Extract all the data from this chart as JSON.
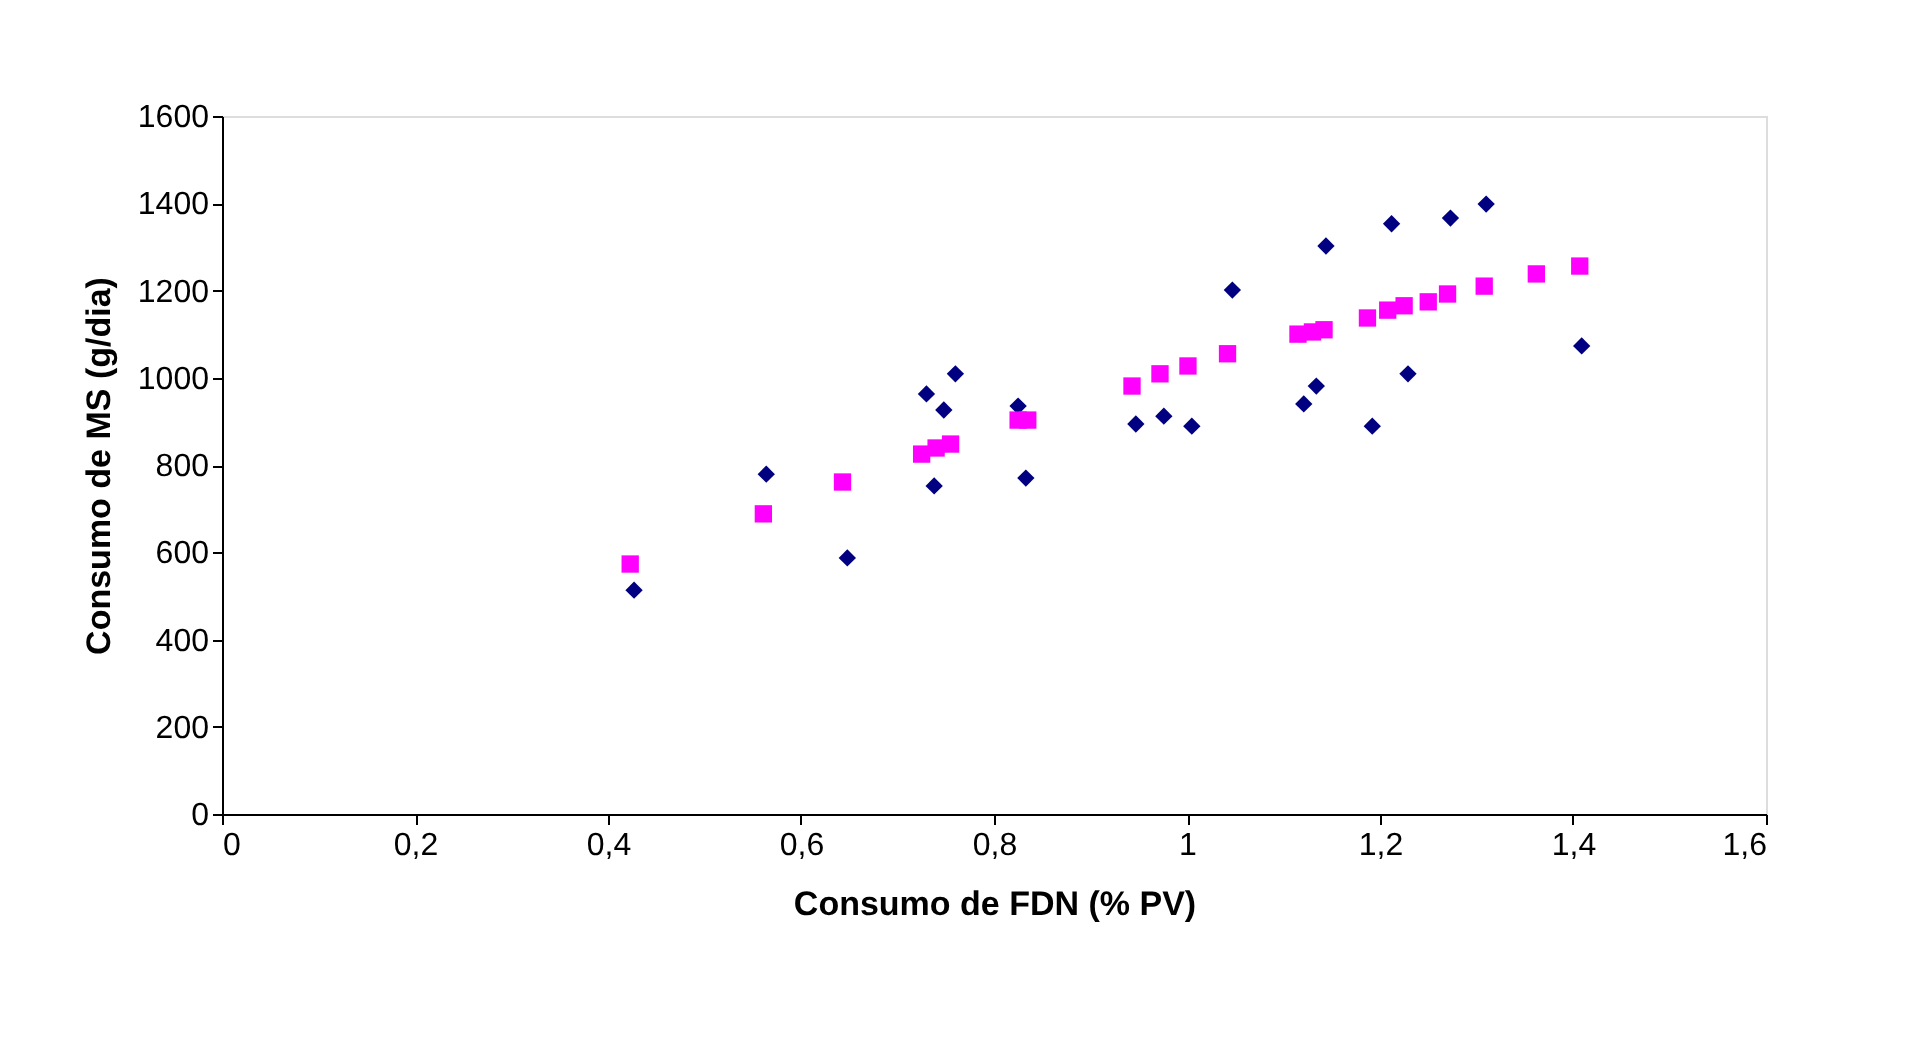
{
  "chart_data": {
    "type": "scatter",
    "xlabel": "Consumo de FDN (% PV)",
    "ylabel": "Consumo de MS (g/dia)",
    "xlim": [
      0,
      1.6
    ],
    "xticks": [
      0,
      {
        "value": 0.2,
        "label": "0,2"
      },
      {
        "value": 0.4,
        "label": "0,4"
      },
      {
        "value": 0.6,
        "label": "0,6"
      },
      {
        "value": 0.8,
        "label": "0,8"
      },
      1,
      {
        "value": 1.2,
        "label": "1,2"
      },
      {
        "value": 1.4,
        "label": "1,4"
      },
      {
        "value": 1.6,
        "label": "1,6"
      }
    ],
    "ylim": [
      0,
      1600
    ],
    "yticks": [
      0,
      200,
      400,
      600,
      800,
      1000,
      1200,
      1400,
      1600
    ],
    "grid": false,
    "series": [
      {
        "color": "#000080",
        "marker": "diamond",
        "x": [
          0.427,
          0.564,
          0.648,
          0.73,
          0.738,
          0.748,
          0.76,
          0.825,
          0.833,
          0.947,
          0.976,
          1.005,
          1.047,
          1.121,
          1.134,
          1.144,
          1.192,
          1.212,
          1.229,
          1.254,
          1.273,
          1.31,
          1.409
        ],
        "values": [
          513,
          779,
          587,
          963,
          752,
          926,
          1009,
          935,
          770,
          894,
          912,
          889,
          1201,
          940,
          981,
          1302,
          889,
          1353,
          1009,
          null,
          1366,
          1398,
          1073
        ]
      },
      {
        "color": "#ff00ff",
        "marker": "square",
        "x": [
          0.423,
          0.561,
          0.643,
          0.725,
          0.74,
          0.755,
          0.825,
          0.835,
          0.943,
          0.972,
          1.001,
          1.042,
          1.115,
          1.13,
          1.142,
          1.187,
          1.208,
          1.225,
          1.25,
          1.27,
          1.308,
          1.362,
          1.407
        ],
        "values": [
          573,
          688,
          761,
          825,
          839,
          848,
          903,
          903,
          981,
          1009,
          1027,
          1055,
          1100,
          1105,
          1110,
          1137,
          1155,
          1165,
          1174,
          1192,
          1210,
          1238,
          1256
        ]
      }
    ]
  }
}
